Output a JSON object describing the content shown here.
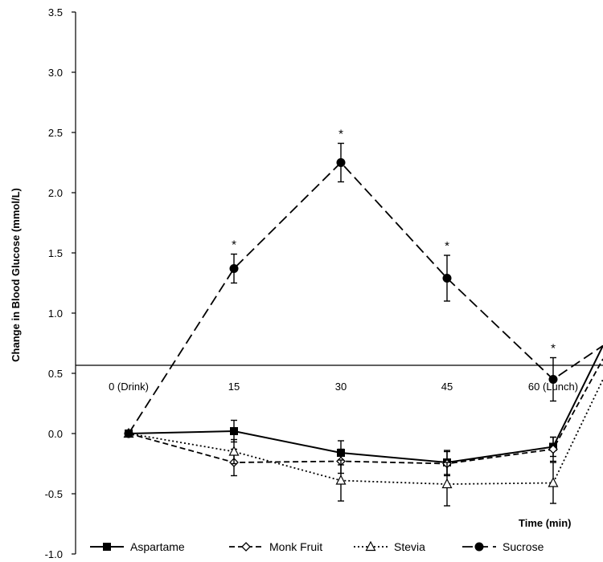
{
  "chart_data": {
    "type": "line",
    "title": "",
    "xlabel": "Time (min)",
    "ylabel": "Change in Blood Glucose (mmol/L)",
    "ylim": [
      -1.0,
      3.5
    ],
    "yticks": [
      "3.5",
      "3.0",
      "2.5",
      "2.0",
      "1.5",
      "1.0",
      "0.5",
      "0.0",
      "-0.5",
      "-1.0"
    ],
    "ytick_values": [
      3.5,
      3.0,
      2.5,
      2.0,
      1.5,
      1.0,
      0.5,
      0.0,
      -0.5,
      -1.0
    ],
    "categories": [
      "0 (Drink)",
      "15",
      "30",
      "45",
      "60 (Lunch)"
    ],
    "x": [
      0,
      15,
      30,
      45,
      60
    ],
    "grid": false,
    "legend_position": "bottom",
    "significance_marker": "*",
    "significant_x": [
      15,
      30,
      45,
      60
    ],
    "series": [
      {
        "name": "Aspartame",
        "style": "solid",
        "marker": "square-filled",
        "values": [
          0.0,
          0.02,
          -0.16,
          -0.24,
          -0.11
        ],
        "errors": [
          0,
          0.09,
          0.1,
          0.1,
          0.08
        ],
        "continues_to": 0.73
      },
      {
        "name": "Monk Fruit",
        "style": "dashed",
        "marker": "diamond-open",
        "values": [
          0.0,
          -0.24,
          -0.23,
          -0.25,
          -0.13
        ],
        "errors": [
          0,
          0.11,
          0.1,
          0.1,
          0.1
        ],
        "continues_to": 0.62
      },
      {
        "name": "Stevia",
        "style": "dotted",
        "marker": "triangle-open",
        "values": [
          0.0,
          -0.15,
          -0.39,
          -0.42,
          -0.41
        ],
        "errors": [
          0,
          0.1,
          0.17,
          0.18,
          0.17
        ],
        "continues_to": 0.45
      },
      {
        "name": "Sucrose",
        "style": "long-dash",
        "marker": "circle-filled",
        "values": [
          0.0,
          1.37,
          2.25,
          1.29,
          0.45
        ],
        "errors": [
          0,
          0.12,
          0.16,
          0.19,
          0.18
        ],
        "continues_to": 0.73
      }
    ]
  }
}
